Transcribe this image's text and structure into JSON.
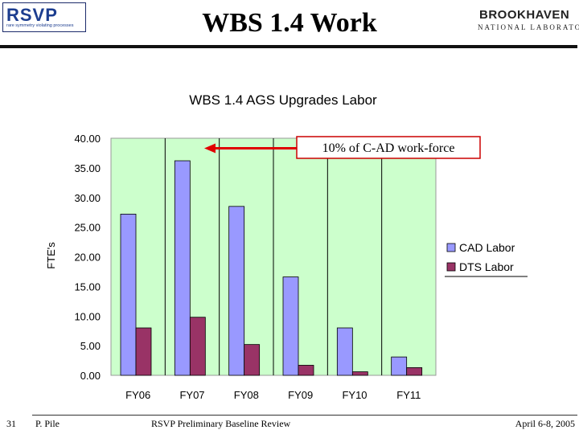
{
  "header": {
    "title": "WBS 1.4 Work",
    "logo_left": {
      "name": "RSVP",
      "tagline": "rare symmetry violating processes"
    },
    "logo_right": {
      "line1": "BROOKHAVEN",
      "line2": "NATIONAL LABORATORY"
    }
  },
  "footer": {
    "page_number": "31",
    "author": "P. Pile",
    "event": "RSVP Preliminary Baseline Review",
    "date": "April 6-8, 2005"
  },
  "colors": {
    "plot_background": "#ccffcc",
    "cad": "#9999ff",
    "dts": "#993366",
    "arrow": "#e00000"
  },
  "chart_data": {
    "type": "bar",
    "title": "WBS 1.4 AGS Upgrades Labor",
    "xlabel": "",
    "ylabel": "FTE's",
    "ylim": [
      0,
      40
    ],
    "ytick_step": 5,
    "ytick_labels": [
      "0.00",
      "5.00",
      "10.00",
      "15.00",
      "20.00",
      "25.00",
      "30.00",
      "35.00",
      "40.00"
    ],
    "categories": [
      "FY06",
      "FY07",
      "FY08",
      "FY09",
      "FY10",
      "FY11"
    ],
    "series": [
      {
        "name": "CAD Labor",
        "values": [
          27.2,
          36.2,
          28.5,
          16.6,
          8.0,
          3.1
        ]
      },
      {
        "name": "DTS Labor",
        "values": [
          8.0,
          9.8,
          5.2,
          1.7,
          0.6,
          1.3
        ]
      }
    ],
    "legend_position": "right",
    "grid": "vertical lines at category boundaries",
    "annotation": {
      "text": "10% of C-AD work-force",
      "y": 38.3
    }
  }
}
